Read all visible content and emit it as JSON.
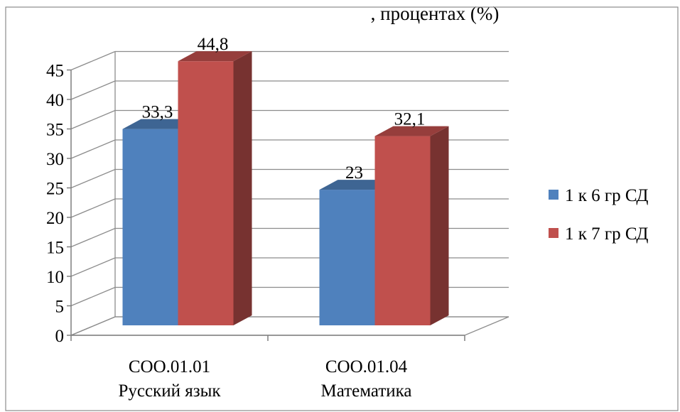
{
  "chart_data": {
    "type": "bar",
    "title": ", процентах (%)",
    "categories": [
      [
        "СОО.01.01",
        "Русский язык"
      ],
      [
        "СОО.01.04",
        "Математика"
      ]
    ],
    "series": [
      {
        "name": "1 к 6 гр СД",
        "values": [
          33.3,
          23
        ],
        "labels": [
          "33,3",
          "23"
        ],
        "color": "#4F81BD"
      },
      {
        "name": "1 к 7 гр СД",
        "values": [
          44.8,
          32.1
        ],
        "labels": [
          "44,8",
          "32,1"
        ],
        "color": "#C0504D"
      }
    ],
    "ylim": [
      0,
      45
    ],
    "yticks": [
      "0",
      "5",
      "10",
      "15",
      "20",
      "25",
      "30",
      "35",
      "40",
      "45"
    ],
    "grid": true,
    "legend": "right"
  }
}
